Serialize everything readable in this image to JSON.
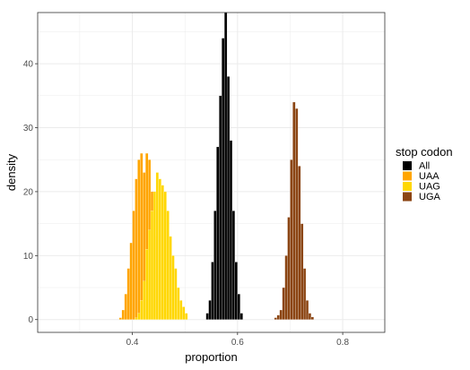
{
  "chart_data": {
    "type": "bar",
    "subtype": "histogram",
    "xlabel": "proportion",
    "ylabel": "density",
    "xlim": [
      0.22,
      0.88
    ],
    "ylim": [
      -2,
      48
    ],
    "xticks": [
      0.4,
      0.6,
      0.8
    ],
    "xtick_labels": [
      "0.4",
      "0.6",
      "0.8"
    ],
    "yticks": [
      0,
      10,
      20,
      30,
      40
    ],
    "ytick_labels": [
      "0",
      "10",
      "20",
      "30",
      "40"
    ],
    "grid": true,
    "legend": {
      "title": "stop codon",
      "position": "right"
    },
    "series": [
      {
        "name": "All",
        "color": "#000000",
        "bin_width": 0.005,
        "x_start": 0.54,
        "values": [
          1,
          3,
          9,
          17,
          27,
          35,
          44,
          48,
          38,
          28,
          17,
          9,
          4,
          1
        ]
      },
      {
        "name": "UAA",
        "color": "#FFA500",
        "bin_width": 0.005,
        "x_start": 0.375,
        "values": [
          0.3,
          1.5,
          4,
          8,
          12,
          17,
          22,
          25,
          26,
          23,
          26,
          25,
          20,
          13,
          7,
          3,
          1
        ]
      },
      {
        "name": "UAG",
        "color": "#FFD700",
        "bin_width": 0.005,
        "x_start": 0.405,
        "values": [
          0.3,
          1,
          3,
          6,
          11,
          14,
          17,
          20,
          23,
          22,
          21,
          20,
          17,
          13,
          10,
          8,
          5,
          3,
          2,
          1
        ]
      },
      {
        "name": "UGA",
        "color": "#8B4513",
        "bin_width": 0.005,
        "x_start": 0.67,
        "values": [
          0.3,
          0.7,
          1.5,
          5,
          10,
          16,
          25,
          34,
          33,
          24,
          15,
          8,
          3,
          1,
          0.4
        ]
      }
    ]
  }
}
